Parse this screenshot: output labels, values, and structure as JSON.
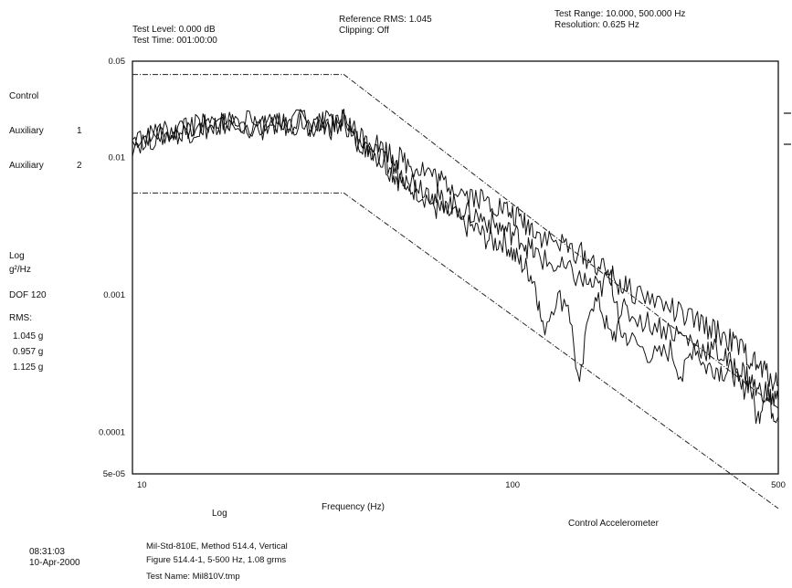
{
  "header": {
    "test_level": "Test Level:  0.000 dB",
    "test_time": "Test Time: 001:00:00",
    "reference_rms": "Reference RMS:  1.045",
    "clipping": "Clipping: Off",
    "test_range": "Test Range: 10.000, 500.000 Hz",
    "resolution": "Resolution:  0.625 Hz"
  },
  "legend": {
    "control": "Control",
    "aux1_label": "Auxiliary",
    "aux1_num": "1",
    "aux2_label": "Auxiliary",
    "aux2_num": "2"
  },
  "side_info": {
    "scale": "Log",
    "units": "g²/Hz",
    "dof": "DOF 120",
    "rms_label": "RMS:",
    "rms_values": [
      "1.045 g",
      "0.957 g",
      "1.125 g"
    ]
  },
  "footer": {
    "time": "08:31:03",
    "date": "10-Apr-2000",
    "line1": "Mil-Std-810E, Method 514.4, Vertical",
    "line2": "Figure 514.4-1, 5-500 Hz, 1.08 grms",
    "line3": "Test Name: Mil810V.tmp",
    "x_scale": "Log",
    "channel": "Control Accelerometer"
  },
  "chart_data": {
    "type": "line",
    "title": "",
    "xlabel": "Frequency (Hz)",
    "ylabel": "",
    "x_scale": "log",
    "y_scale": "log",
    "xlim": [
      10,
      500
    ],
    "ylim": [
      5e-05,
      0.05
    ],
    "x_ticks": [
      10,
      100,
      500
    ],
    "x_tick_labels": [
      "10",
      "100",
      "500"
    ],
    "y_ticks": [
      0.05,
      0.01,
      0.001,
      0.0001,
      5e-05
    ],
    "y_tick_labels": [
      "0.05",
      "0.01",
      "0.001",
      "0.0001",
      "5e-05"
    ],
    "grid": false,
    "tolerance_lines": {
      "upper": {
        "x": [
          10,
          36,
          500
        ],
        "y": [
          0.04,
          0.04,
          0.00015
        ]
      },
      "lower": {
        "x": [
          10,
          36,
          500
        ],
        "y": [
          0.0055,
          0.0055,
          2.8e-05
        ]
      }
    },
    "series": [
      {
        "x": [
          10,
          11,
          12,
          13,
          14,
          15,
          16,
          17,
          18,
          20,
          22,
          24,
          26,
          28,
          30,
          32,
          34,
          36,
          38,
          40,
          42,
          45,
          48,
          50,
          53,
          56,
          60,
          63,
          66,
          70,
          75,
          80,
          85,
          90,
          95,
          100,
          105,
          110,
          115,
          120,
          130,
          140,
          150,
          160,
          170,
          180,
          190,
          200,
          220,
          240,
          260,
          280,
          300,
          320,
          340,
          360,
          380,
          400,
          420,
          440,
          460,
          480,
          500
        ],
        "y": [
          0.0135,
          0.0145,
          0.015,
          0.0155,
          0.016,
          0.0165,
          0.017,
          0.0175,
          0.018,
          0.0175,
          0.0165,
          0.018,
          0.0175,
          0.019,
          0.016,
          0.018,
          0.0165,
          0.019,
          0.014,
          0.013,
          0.012,
          0.0095,
          0.008,
          0.007,
          0.006,
          0.0058,
          0.005,
          0.0042,
          0.004,
          0.0038,
          0.0032,
          0.003,
          0.0026,
          0.0024,
          0.0025,
          0.002,
          0.0017,
          0.0015,
          0.0012,
          0.00055,
          0.00095,
          0.0009,
          0.0002,
          0.0009,
          0.00085,
          0.0005,
          0.00055,
          0.0005,
          0.0004,
          0.00035,
          0.0004,
          0.00025,
          0.00045,
          0.0003,
          0.0003,
          0.00028,
          0.00028,
          0.0002,
          0.00024,
          0.00012,
          0.0002,
          0.00015,
          0.00013
        ]
      },
      {
        "x": [
          10,
          11,
          12,
          13,
          14,
          15,
          16,
          17,
          18,
          20,
          22,
          24,
          26,
          28,
          30,
          32,
          34,
          36,
          38,
          40,
          42,
          45,
          48,
          50,
          53,
          56,
          60,
          63,
          66,
          70,
          75,
          80,
          85,
          90,
          95,
          100,
          105,
          110,
          115,
          120,
          130,
          140,
          150,
          160,
          170,
          180,
          190,
          200,
          220,
          240,
          260,
          280,
          300,
          320,
          340,
          360,
          380,
          400,
          420,
          440,
          460,
          480,
          500
        ],
        "y": [
          0.0125,
          0.0135,
          0.0145,
          0.015,
          0.0155,
          0.016,
          0.0165,
          0.017,
          0.0175,
          0.017,
          0.016,
          0.0175,
          0.017,
          0.018,
          0.0155,
          0.0175,
          0.016,
          0.0185,
          0.0135,
          0.0125,
          0.0115,
          0.0095,
          0.0085,
          0.0078,
          0.007,
          0.0065,
          0.0058,
          0.005,
          0.0048,
          0.0045,
          0.004,
          0.0038,
          0.0035,
          0.0032,
          0.003,
          0.0028,
          0.0026,
          0.0022,
          0.002,
          0.0018,
          0.0016,
          0.0015,
          0.0013,
          0.0012,
          0.0011,
          0.0014,
          0.0008,
          0.00075,
          0.00065,
          0.0006,
          0.00055,
          0.0005,
          0.00045,
          0.0004,
          0.0004,
          0.00035,
          0.0003,
          0.00028,
          0.00025,
          0.0002,
          0.0002,
          0.00018,
          0.00017
        ]
      },
      {
        "x": [
          10,
          11,
          12,
          13,
          14,
          15,
          16,
          17,
          18,
          20,
          22,
          24,
          26,
          28,
          30,
          32,
          34,
          36,
          38,
          40,
          42,
          45,
          48,
          50,
          53,
          56,
          60,
          63,
          66,
          70,
          75,
          80,
          85,
          90,
          95,
          100,
          105,
          110,
          115,
          120,
          130,
          140,
          150,
          160,
          170,
          180,
          190,
          200,
          220,
          240,
          260,
          280,
          300,
          320,
          340,
          360,
          380,
          400,
          420,
          440,
          460,
          480,
          500
        ],
        "y": [
          0.013,
          0.014,
          0.015,
          0.016,
          0.0165,
          0.017,
          0.0172,
          0.0178,
          0.0185,
          0.018,
          0.017,
          0.018,
          0.0178,
          0.019,
          0.0165,
          0.018,
          0.017,
          0.0195,
          0.016,
          0.0145,
          0.0135,
          0.012,
          0.0105,
          0.01,
          0.009,
          0.0085,
          0.008,
          0.007,
          0.0065,
          0.0062,
          0.0055,
          0.0052,
          0.0048,
          0.0045,
          0.0042,
          0.0038,
          0.0035,
          0.0032,
          0.003,
          0.0026,
          0.0024,
          0.0022,
          0.002,
          0.0018,
          0.0016,
          0.0014,
          0.0012,
          0.0011,
          0.001,
          0.0009,
          0.0008,
          0.0007,
          0.00065,
          0.0006,
          0.00055,
          0.0005,
          0.00045,
          0.0004,
          0.00035,
          0.0003,
          0.00028,
          0.00025,
          0.00022
        ]
      }
    ]
  }
}
